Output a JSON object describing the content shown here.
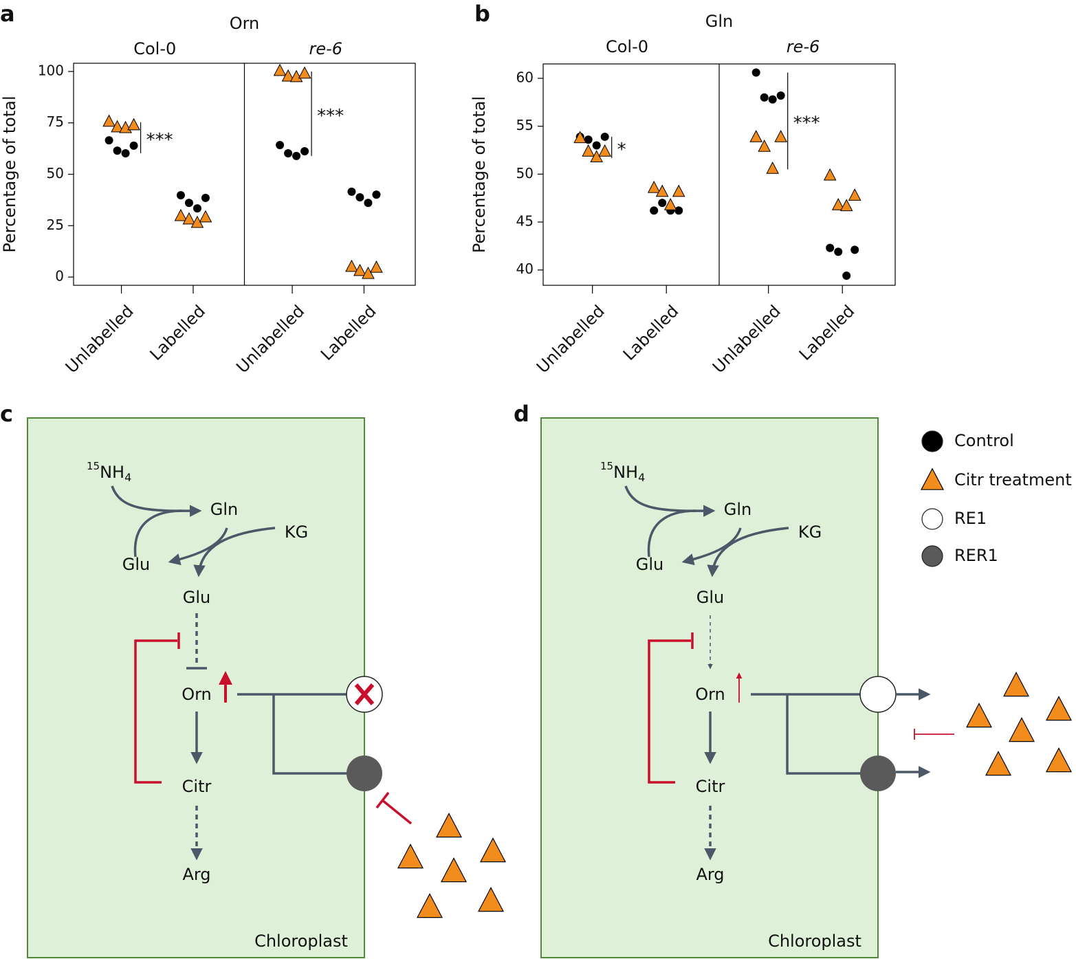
{
  "panels": [
    "a",
    "b",
    "c",
    "d"
  ],
  "chart_data": [
    {
      "type": "strip",
      "title": "Orn",
      "ylabel": "Percentage of total",
      "ylim": [
        -4,
        104
      ],
      "yticks": [
        0,
        25,
        50,
        75,
        100
      ],
      "facets": [
        {
          "label": "Col-0",
          "italic": false,
          "categories": [
            "Unlabelled",
            "Labelled"
          ]
        },
        {
          "label": "re-6",
          "italic": true,
          "categories": [
            "Unlabelled",
            "Labelled"
          ]
        }
      ],
      "annotations": [
        "***",
        "***"
      ],
      "series": [
        {
          "marker": "circle",
          "color": "#000000",
          "values": [
            [
              [
                66.5,
                61.5,
                60.2,
                63.9
              ],
              [
                39.8,
                36.1,
                33.4,
                38.5
              ]
            ],
            [
              [
                64.2,
                60.2,
                58.9,
                61.2
              ],
              [
                41.5,
                38.8,
                36.1,
                40.1
              ]
            ]
          ]
        },
        {
          "marker": "triangle",
          "color": "#f28c1c",
          "values": [
            [
              [
                75.3,
                72.6,
                72.2,
                73.6
              ],
              [
                29.4,
                27.8,
                26.1,
                28.8
              ]
            ],
            [
              [
                100,
                97.3,
                97,
                98.7
              ],
              [
                4.7,
                2.7,
                1.3,
                4.3
              ]
            ]
          ]
        }
      ]
    },
    {
      "type": "strip",
      "title": "Gln",
      "ylabel": "Percentage of total",
      "ylim": [
        38.4,
        61.5
      ],
      "yticks": [
        40,
        45,
        50,
        55,
        60
      ],
      "facets": [
        {
          "label": "Col-0",
          "italic": false,
          "categories": [
            "Unlabelled",
            "Labelled"
          ]
        },
        {
          "label": "re-6",
          "italic": true,
          "categories": [
            "Unlabelled",
            "Labelled"
          ]
        }
      ],
      "annotations": [
        "*",
        "***"
      ],
      "series": [
        {
          "marker": "circle",
          "color": "#000000",
          "values": [
            [
              [
                53.9,
                53.6,
                53.0,
                53.9
              ],
              [
                46.2,
                47.0,
                46.2,
                46.2
              ]
            ],
            [
              [
                60.6,
                58.0,
                57.8,
                58.2
              ],
              [
                42.3,
                41.9,
                39.4,
                42.1
              ]
            ]
          ]
        },
        {
          "marker": "triangle",
          "color": "#f28c1c",
          "values": [
            [
              [
                53.7,
                52.3,
                51.7,
                52.3
              ],
              [
                48.5,
                48.1,
                46.7,
                48.1
              ]
            ],
            [
              [
                53.8,
                52.8,
                50.5,
                53.8
              ],
              [
                49.8,
                46.7,
                46.6,
                47.7
              ]
            ]
          ]
        }
      ]
    }
  ],
  "diagrams": [
    {
      "ammonium": {
        "isotope": "15",
        "formula": "NH",
        "subscript": "4"
      },
      "labels": [
        "Gln",
        "KG",
        "Glu",
        "Glu",
        "Orn",
        "Citr",
        "Arg"
      ],
      "compartment": "Chloroplast"
    },
    {
      "ammonium": {
        "isotope": "15",
        "formula": "NH",
        "subscript": "4"
      },
      "labels": [
        "Gln",
        "KG",
        "Glu",
        "Glu",
        "Orn",
        "Citr",
        "Arg"
      ],
      "compartment": "Chloroplast"
    }
  ],
  "legend": {
    "items": [
      {
        "label": "Control",
        "shape": "circle",
        "color": "#000000"
      },
      {
        "label": "Citr treatment",
        "shape": "triangle",
        "color": "#f28c1c"
      },
      {
        "label": "RE1",
        "shape": "circle",
        "color": "#ffffff"
      },
      {
        "label": "RER1",
        "shape": "circle",
        "color": "#5a5a5a"
      }
    ]
  }
}
